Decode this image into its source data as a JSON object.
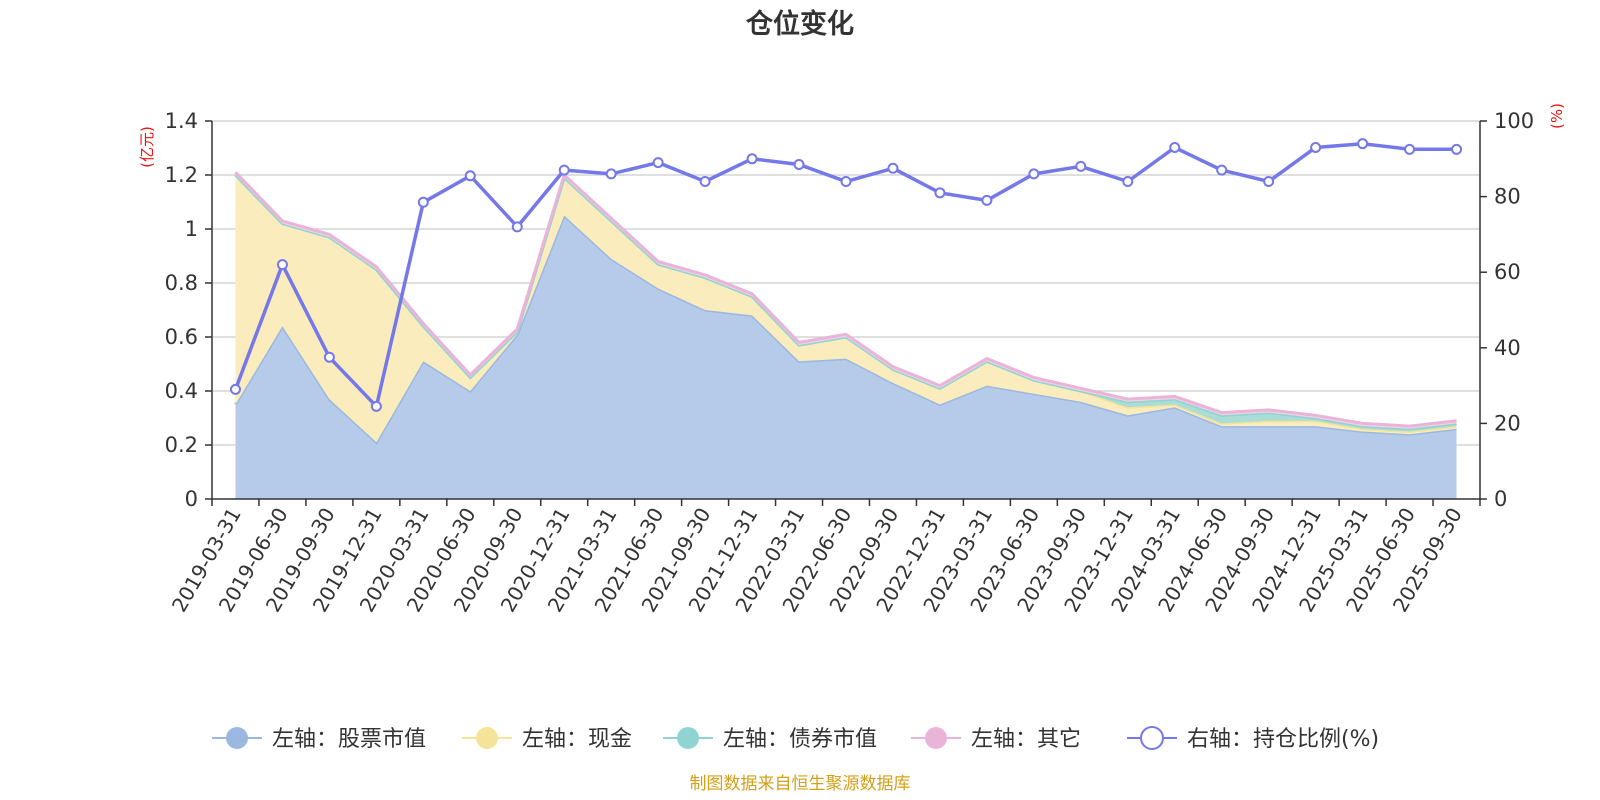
{
  "chart_data": {
    "type": "area",
    "title": "仓位变化",
    "source": "制图数据来自恒生聚源数据库",
    "left_unit": "(亿元)",
    "right_unit": "(%)",
    "ylim_left": [
      0,
      1.4
    ],
    "ylim_right": [
      0,
      100
    ],
    "left_ticks": [
      "0",
      "0.2",
      "0.4",
      "0.6",
      "0.8",
      "1",
      "1.2",
      "1.4"
    ],
    "right_ticks": [
      "0",
      "20",
      "40",
      "60",
      "80",
      "100"
    ],
    "categories": [
      "2019-03-31",
      "2019-06-30",
      "2019-09-30",
      "2019-12-31",
      "2020-03-31",
      "2020-06-30",
      "2020-09-30",
      "2020-12-31",
      "2021-03-31",
      "2021-06-30",
      "2021-09-30",
      "2021-12-31",
      "2022-03-31",
      "2022-06-30",
      "2022-09-30",
      "2022-12-31",
      "2023-03-31",
      "2023-06-30",
      "2023-09-30",
      "2023-12-31",
      "2024-03-31",
      "2024-06-30",
      "2024-09-30",
      "2024-12-31",
      "2025-03-31",
      "2025-06-30",
      "2025-09-30"
    ],
    "series": [
      {
        "name": "左轴：股票市值",
        "axis": "left",
        "color": "#9bb8e0",
        "fill": "#b6cbea",
        "values": [
          0.35,
          0.64,
          0.37,
          0.21,
          0.51,
          0.4,
          0.61,
          1.05,
          0.89,
          0.78,
          0.7,
          0.68,
          0.51,
          0.52,
          0.43,
          0.35,
          0.42,
          0.39,
          0.36,
          0.31,
          0.34,
          0.27,
          0.27,
          0.27,
          0.25,
          0.24,
          0.26
        ]
      },
      {
        "name": "左轴：现金",
        "axis": "left",
        "color": "#f5e39a",
        "fill": "#faecbd",
        "values": [
          0.85,
          0.38,
          0.6,
          0.64,
          0.13,
          0.05,
          0.01,
          0.14,
          0.14,
          0.09,
          0.12,
          0.07,
          0.06,
          0.08,
          0.05,
          0.06,
          0.09,
          0.05,
          0.04,
          0.03,
          0.01,
          0.01,
          0.02,
          0.02,
          0.01,
          0.01,
          0.01
        ]
      },
      {
        "name": "左轴：债券市值",
        "axis": "left",
        "color": "#8fd3d3",
        "fill": "#a9ddd6",
        "values": [
          0,
          0,
          0,
          0,
          0,
          0,
          0,
          0,
          0,
          0,
          0,
          0,
          0,
          0,
          0,
          0,
          0,
          0,
          0,
          0.02,
          0.02,
          0.03,
          0.03,
          0.01,
          0.01,
          0.01,
          0.01
        ]
      },
      {
        "name": "左轴：其它",
        "axis": "left",
        "color": "#e9b4d8",
        "fill": "#f1d3e6",
        "values": [
          0.01,
          0.01,
          0.01,
          0.01,
          0.01,
          0.01,
          0.01,
          0.01,
          0.01,
          0.01,
          0.01,
          0.01,
          0.01,
          0.01,
          0.01,
          0.01,
          0.01,
          0.01,
          0.01,
          0.01,
          0.01,
          0.01,
          0.01,
          0.01,
          0.01,
          0.01,
          0.01
        ]
      },
      {
        "name": "右轴：持仓比例(%)",
        "axis": "right",
        "color": "#7478e8",
        "values": [
          29,
          62,
          37.5,
          24.5,
          78.5,
          85.5,
          72,
          87,
          86,
          89,
          84,
          90,
          88.5,
          84,
          87.5,
          81,
          79,
          86,
          88,
          84,
          93,
          87,
          84,
          93,
          94,
          92.5,
          92.5
        ]
      }
    ]
  }
}
